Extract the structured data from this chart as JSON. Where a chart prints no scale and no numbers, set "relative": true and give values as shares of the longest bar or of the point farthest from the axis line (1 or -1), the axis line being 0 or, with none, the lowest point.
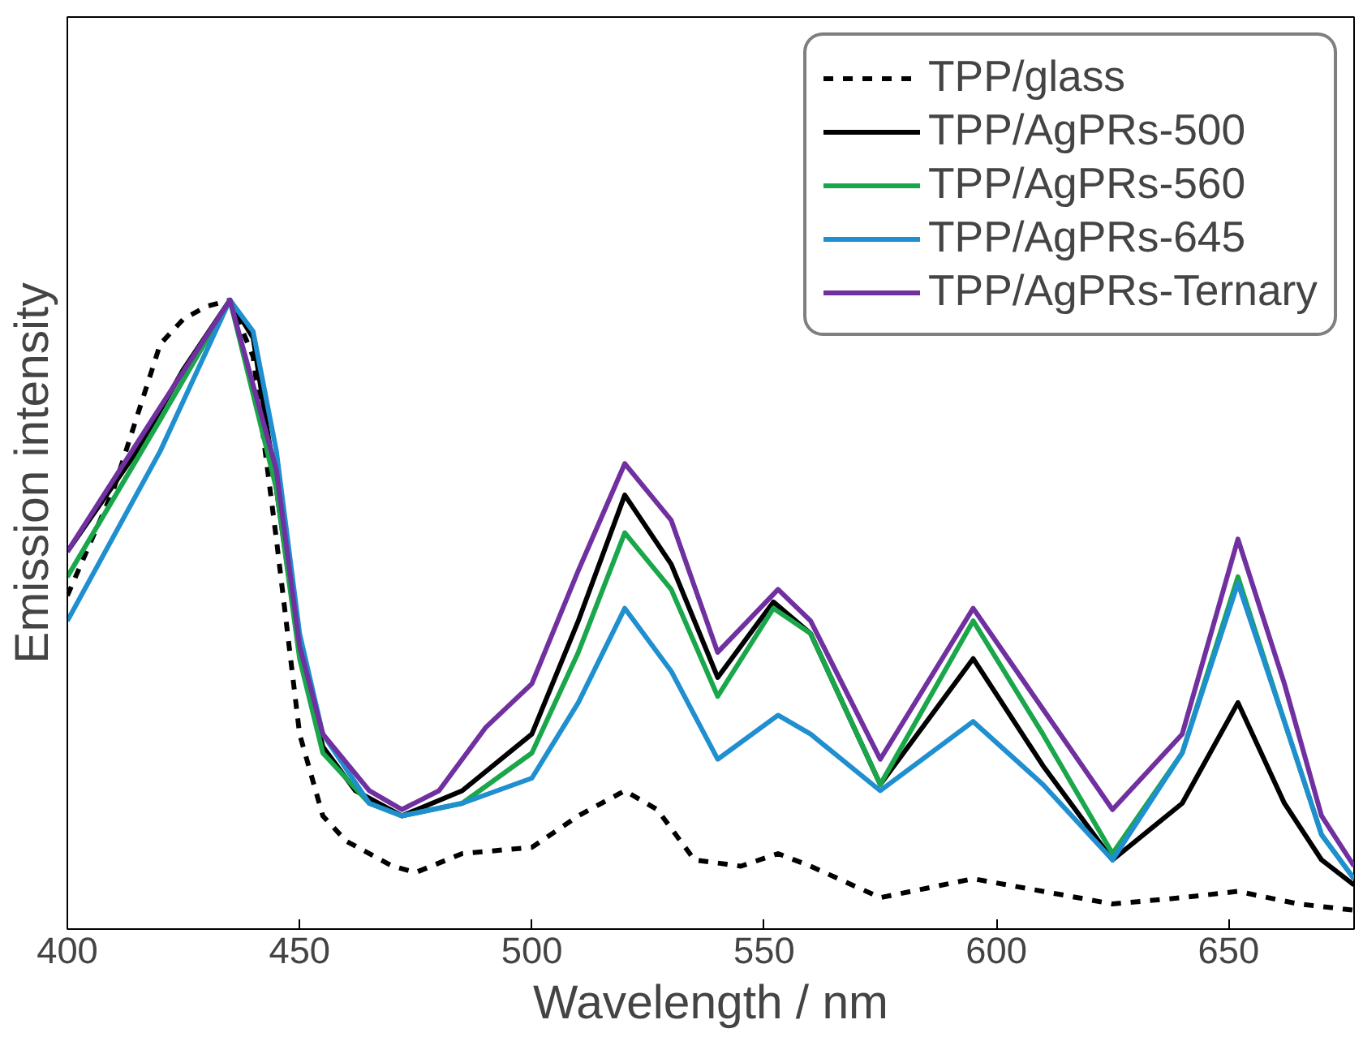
{
  "chart_data": {
    "type": "line",
    "relative": true,
    "xlabel": "Wavelength / nm",
    "ylabel": "Emission intensity",
    "xlim": [
      400,
      677
    ],
    "xticks": [
      400,
      450,
      500,
      550,
      600,
      650
    ],
    "legend": "top right",
    "series": [
      {
        "name": "TPP/glass",
        "color": "#000000",
        "line_style": "dashed",
        "x": [
          400,
          410,
          420,
          425,
          430,
          435,
          440,
          445,
          450,
          455,
          460,
          470,
          475,
          485,
          500,
          510,
          520,
          527,
          535,
          545,
          553,
          560,
          575,
          595,
          610,
          625,
          640,
          652,
          665,
          677
        ],
        "values": [
          0.53,
          0.7,
          0.93,
          0.97,
          0.99,
          1.0,
          0.91,
          0.62,
          0.31,
          0.18,
          0.14,
          0.1,
          0.09,
          0.12,
          0.13,
          0.18,
          0.22,
          0.19,
          0.11,
          0.1,
          0.12,
          0.1,
          0.05,
          0.08,
          0.06,
          0.04,
          0.05,
          0.06,
          0.04,
          0.03
        ]
      },
      {
        "name": "TPP/AgPRs-500",
        "color": "#000000",
        "x": [
          400,
          415,
          425,
          435,
          440,
          445,
          450,
          455,
          462,
          472,
          485,
          500,
          510,
          520,
          530,
          540,
          552,
          560,
          575,
          595,
          610,
          625,
          640,
          652,
          662,
          670,
          677
        ],
        "values": [
          0.6,
          0.76,
          0.89,
          1.0,
          0.94,
          0.7,
          0.44,
          0.29,
          0.22,
          0.18,
          0.22,
          0.31,
          0.49,
          0.69,
          0.58,
          0.4,
          0.52,
          0.47,
          0.23,
          0.43,
          0.26,
          0.11,
          0.2,
          0.36,
          0.2,
          0.11,
          0.07
        ]
      },
      {
        "name": "TPP/AgPRs-560",
        "color": "#1aa64a",
        "x": [
          400,
          420,
          435,
          445,
          450,
          455,
          465,
          472,
          485,
          500,
          510,
          520,
          530,
          540,
          552,
          560,
          575,
          595,
          610,
          625,
          640,
          652,
          662,
          670,
          677
        ],
        "values": [
          0.56,
          0.81,
          1.0,
          0.7,
          0.43,
          0.28,
          0.2,
          0.18,
          0.2,
          0.28,
          0.44,
          0.63,
          0.54,
          0.37,
          0.51,
          0.47,
          0.23,
          0.49,
          0.31,
          0.12,
          0.28,
          0.56,
          0.33,
          0.15,
          0.08
        ]
      },
      {
        "name": "TPP/AgPRs-645",
        "color": "#1f8fd0",
        "x": [
          400,
          420,
          435,
          440,
          445,
          450,
          455,
          465,
          472,
          485,
          500,
          510,
          520,
          530,
          540,
          553,
          560,
          575,
          595,
          610,
          625,
          640,
          652,
          662,
          670,
          677
        ],
        "values": [
          0.49,
          0.76,
          1.0,
          0.95,
          0.76,
          0.47,
          0.31,
          0.2,
          0.18,
          0.2,
          0.24,
          0.36,
          0.51,
          0.41,
          0.27,
          0.34,
          0.31,
          0.22,
          0.33,
          0.23,
          0.11,
          0.28,
          0.55,
          0.33,
          0.15,
          0.08
        ]
      },
      {
        "name": "TPP/AgPRs-Ternary",
        "color": "#7030a0",
        "x": [
          400,
          420,
          435,
          445,
          450,
          455,
          465,
          472,
          480,
          490,
          500,
          510,
          520,
          530,
          540,
          553,
          560,
          575,
          595,
          610,
          625,
          640,
          652,
          662,
          670,
          677
        ],
        "values": [
          0.6,
          0.83,
          1.0,
          0.73,
          0.45,
          0.31,
          0.22,
          0.19,
          0.22,
          0.32,
          0.39,
          0.57,
          0.74,
          0.65,
          0.44,
          0.54,
          0.49,
          0.27,
          0.51,
          0.35,
          0.19,
          0.31,
          0.62,
          0.39,
          0.18,
          0.1
        ]
      }
    ]
  }
}
